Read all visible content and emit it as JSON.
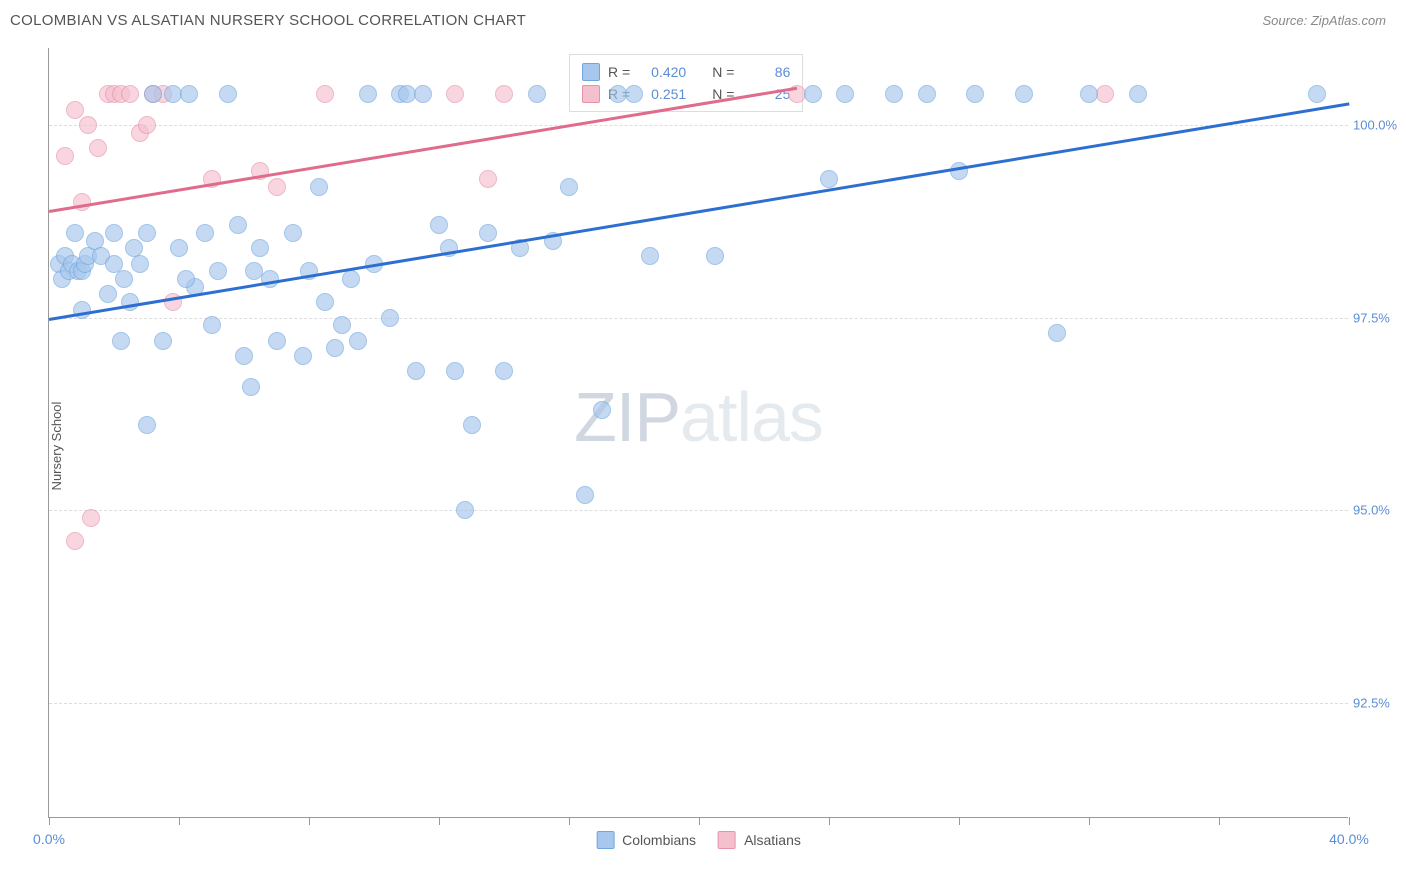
{
  "header": {
    "title": "COLOMBIAN VS ALSATIAN NURSERY SCHOOL CORRELATION CHART",
    "source": "Source: ZipAtlas.com"
  },
  "chart": {
    "type": "scatter",
    "ylabel": "Nursery School",
    "xlim": [
      0,
      40
    ],
    "ylim": [
      91,
      101
    ],
    "xticks": [
      0,
      4,
      8,
      12,
      16,
      20,
      24,
      28,
      32,
      36,
      40
    ],
    "xtick_labels": {
      "0": "0.0%",
      "40": "40.0%"
    },
    "yticks": [
      92.5,
      95.0,
      97.5,
      100.0
    ],
    "ytick_labels": [
      "92.5%",
      "95.0%",
      "97.5%",
      "100.0%"
    ],
    "grid_color": "#dddddd",
    "background_color": "#ffffff",
    "axis_color": "#999999",
    "marker_radius": 9,
    "marker_opacity": 0.65,
    "series": {
      "colombians": {
        "label": "Colombians",
        "fill": "#a7c7ec",
        "stroke": "#6fa6de",
        "r_value": "0.420",
        "n_value": "86",
        "trend": {
          "x1": 0,
          "y1": 97.5,
          "x2": 40,
          "y2": 100.3,
          "color": "#2d6fd1",
          "width": 2.5
        },
        "points": [
          [
            0.3,
            98.2
          ],
          [
            0.4,
            98.0
          ],
          [
            0.5,
            98.3
          ],
          [
            0.6,
            98.1
          ],
          [
            0.7,
            98.2
          ],
          [
            0.8,
            98.6
          ],
          [
            0.9,
            98.1
          ],
          [
            1.0,
            98.1
          ],
          [
            1.1,
            98.2
          ],
          [
            1.2,
            98.3
          ],
          [
            1.0,
            97.6
          ],
          [
            1.4,
            98.5
          ],
          [
            1.6,
            98.3
          ],
          [
            1.8,
            97.8
          ],
          [
            2.0,
            98.6
          ],
          [
            2.2,
            97.2
          ],
          [
            2.5,
            97.7
          ],
          [
            2.8,
            98.2
          ],
          [
            3.0,
            98.6
          ],
          [
            3.2,
            100.4
          ],
          [
            3.5,
            97.2
          ],
          [
            3.8,
            100.4
          ],
          [
            4.0,
            98.4
          ],
          [
            4.3,
            100.4
          ],
          [
            4.5,
            97.9
          ],
          [
            4.8,
            98.6
          ],
          [
            5.0,
            97.4
          ],
          [
            5.2,
            98.1
          ],
          [
            5.5,
            100.4
          ],
          [
            5.8,
            98.7
          ],
          [
            6.0,
            97.0
          ],
          [
            6.3,
            98.1
          ],
          [
            6.5,
            98.4
          ],
          [
            3.0,
            96.1
          ],
          [
            6.2,
            96.6
          ],
          [
            7.0,
            97.2
          ],
          [
            7.5,
            98.6
          ],
          [
            8.0,
            98.1
          ],
          [
            8.3,
            99.2
          ],
          [
            8.5,
            97.7
          ],
          [
            8.8,
            97.1
          ],
          [
            9.0,
            97.4
          ],
          [
            9.3,
            98.0
          ],
          [
            9.5,
            97.2
          ],
          [
            9.8,
            100.4
          ],
          [
            10.0,
            98.2
          ],
          [
            10.5,
            97.5
          ],
          [
            10.8,
            100.4
          ],
          [
            11.0,
            100.4
          ],
          [
            11.3,
            96.8
          ],
          [
            11.5,
            100.4
          ],
          [
            12.0,
            98.7
          ],
          [
            12.3,
            98.4
          ],
          [
            12.5,
            96.8
          ],
          [
            12.8,
            95.0
          ],
          [
            13.0,
            96.1
          ],
          [
            13.5,
            98.6
          ],
          [
            14.0,
            96.8
          ],
          [
            14.5,
            98.4
          ],
          [
            15.0,
            100.4
          ],
          [
            15.5,
            98.5
          ],
          [
            16.0,
            99.2
          ],
          [
            16.5,
            95.2
          ],
          [
            17.0,
            96.3
          ],
          [
            17.5,
            100.4
          ],
          [
            18.0,
            100.4
          ],
          [
            18.5,
            98.3
          ],
          [
            20.5,
            98.3
          ],
          [
            23.5,
            100.4
          ],
          [
            24.0,
            99.3
          ],
          [
            24.5,
            100.4
          ],
          [
            26.0,
            100.4
          ],
          [
            27.0,
            100.4
          ],
          [
            28.0,
            99.4
          ],
          [
            28.5,
            100.4
          ],
          [
            30.0,
            100.4
          ],
          [
            31.0,
            97.3
          ],
          [
            32.0,
            100.4
          ],
          [
            33.5,
            100.4
          ],
          [
            39.0,
            100.4
          ],
          [
            2.0,
            98.2
          ],
          [
            2.3,
            98.0
          ],
          [
            2.6,
            98.4
          ],
          [
            4.2,
            98.0
          ],
          [
            6.8,
            98.0
          ],
          [
            7.8,
            97.0
          ]
        ]
      },
      "alsatians": {
        "label": "Alsatians",
        "fill": "#f5c0ce",
        "stroke": "#e693aa",
        "r_value": "0.251",
        "n_value": "25",
        "trend": {
          "x1": 0,
          "y1": 98.9,
          "x2": 23,
          "y2": 100.5,
          "color": "#e06b8c",
          "width": 2.5
        },
        "points": [
          [
            0.5,
            99.6
          ],
          [
            0.8,
            100.2
          ],
          [
            1.0,
            99.0
          ],
          [
            1.2,
            100.0
          ],
          [
            1.5,
            99.7
          ],
          [
            1.8,
            100.4
          ],
          [
            2.0,
            100.4
          ],
          [
            2.2,
            100.4
          ],
          [
            2.5,
            100.4
          ],
          [
            2.8,
            99.9
          ],
          [
            3.0,
            100.0
          ],
          [
            3.2,
            100.4
          ],
          [
            3.5,
            100.4
          ],
          [
            3.8,
            97.7
          ],
          [
            1.3,
            94.9
          ],
          [
            0.8,
            94.6
          ],
          [
            5.0,
            99.3
          ],
          [
            6.5,
            99.4
          ],
          [
            7.0,
            99.2
          ],
          [
            8.5,
            100.4
          ],
          [
            12.5,
            100.4
          ],
          [
            13.5,
            99.3
          ],
          [
            14.0,
            100.4
          ],
          [
            23.0,
            100.4
          ],
          [
            32.5,
            100.4
          ]
        ]
      }
    },
    "legend_box": {
      "r_label": "R =",
      "n_label": "N ="
    },
    "watermark": {
      "part1": "ZIP",
      "part2": "atlas"
    }
  }
}
